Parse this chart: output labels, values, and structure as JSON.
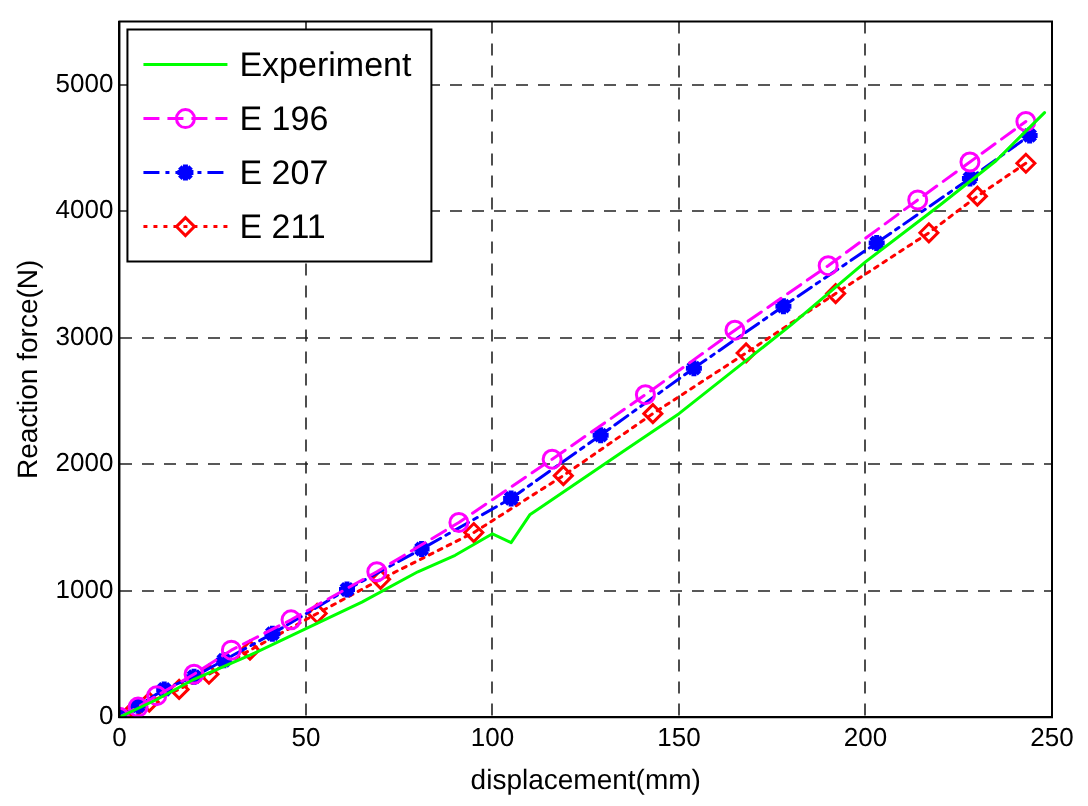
{
  "chart_data": {
    "type": "line",
    "xlabel": "displacement(mm)",
    "ylabel": "Reaction force(N)",
    "xlim": [
      0,
      250
    ],
    "xticks": [
      0,
      50,
      100,
      150,
      200,
      250
    ],
    "ylim": [
      0,
      5500
    ],
    "yticks": [
      0,
      1000,
      2000,
      3000,
      4000,
      5000
    ],
    "grid": true,
    "legend": "top left",
    "series": [
      {
        "name": "Experiment",
        "color": "#00ff00",
        "marker": "none",
        "line_style": "solid",
        "x": [
          0,
          10,
          20,
          35,
          50,
          65,
          80,
          90,
          100,
          105,
          110,
          120,
          135,
          150,
          165,
          180,
          200,
          220,
          235,
          248
        ],
        "values": [
          0,
          140,
          300,
          490,
          700,
          910,
          1150,
          1280,
          1450,
          1380,
          1600,
          1800,
          2100,
          2400,
          2750,
          3100,
          3600,
          4050,
          4400,
          4780
        ]
      },
      {
        "name": "E 196",
        "color": "#ff00ff",
        "marker": "circle",
        "line_style": "dashed",
        "x": [
          0,
          5,
          10,
          20,
          30,
          46,
          69,
          91,
          116,
          141,
          165,
          190,
          214,
          228,
          243
        ],
        "values": [
          0,
          80,
          170,
          340,
          530,
          770,
          1150,
          1540,
          2040,
          2550,
          3060,
          3570,
          4090,
          4390,
          4710
        ]
      },
      {
        "name": "E 207",
        "color": "#0000ff",
        "marker": "cross",
        "line_style": "dashdot",
        "x": [
          0,
          5,
          12,
          20,
          28,
          41,
          61,
          81,
          105,
          129,
          154,
          178,
          203,
          228,
          244
        ],
        "values": [
          0,
          90,
          220,
          320,
          450,
          660,
          1010,
          1330,
          1730,
          2230,
          2760,
          3250,
          3750,
          4260,
          4600
        ]
      },
      {
        "name": "E 211",
        "color": "#ff0000",
        "marker": "diamond",
        "line_style": "dotted",
        "x": [
          0,
          4,
          8,
          16,
          24,
          35,
          53,
          70,
          95,
          119,
          143,
          168,
          192,
          217,
          230,
          243
        ],
        "values": [
          0,
          60,
          120,
          220,
          340,
          530,
          820,
          1090,
          1460,
          1910,
          2400,
          2880,
          3350,
          3830,
          4120,
          4380
        ]
      }
    ]
  }
}
